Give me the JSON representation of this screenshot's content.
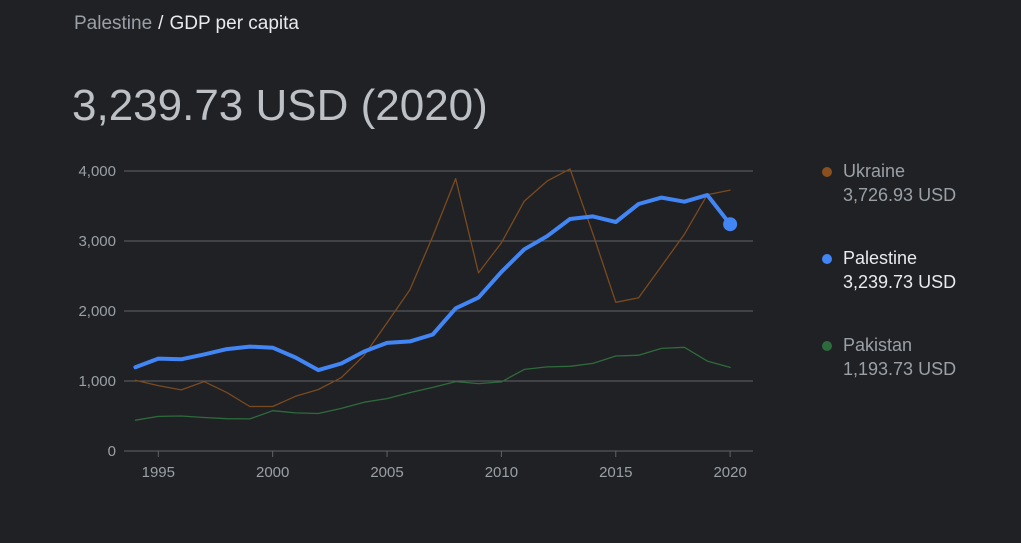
{
  "breadcrumb": {
    "parent": "Palestine",
    "separator": "/",
    "current": "GDP per capita"
  },
  "headline": "3,239.73 USD (2020)",
  "colors": {
    "background": "#202124",
    "grid": "#5f6368",
    "ukraine": "#7a4a20",
    "palestine": "#4285f4",
    "pakistan": "#2e6b3c"
  },
  "legend": [
    {
      "name": "Ukraine",
      "value": "3,726.93 USD",
      "color": "#8a4f1f",
      "highlighted": false
    },
    {
      "name": "Palestine",
      "value": "3,239.73 USD",
      "color": "#4285f4",
      "highlighted": true
    },
    {
      "name": "Pakistan",
      "value": "1,193.73 USD",
      "color": "#2e6b3c",
      "highlighted": false
    }
  ],
  "chart_data": {
    "type": "line",
    "title": "",
    "xlabel": "",
    "ylabel": "",
    "xlim": [
      1994,
      2020
    ],
    "ylim": [
      0,
      4000
    ],
    "yticks": [
      0,
      1000,
      2000,
      3000,
      4000
    ],
    "ytick_labels": [
      "0",
      "1,000",
      "2,000",
      "3,000",
      "4,000"
    ],
    "xticks": [
      1995,
      2000,
      2005,
      2010,
      2015,
      2020
    ],
    "xtick_labels": [
      "1995",
      "2000",
      "2005",
      "2010",
      "2015",
      "2020"
    ],
    "grid": true,
    "legend_position": "right",
    "x": [
      1994,
      1995,
      1996,
      1997,
      1998,
      1999,
      2000,
      2001,
      2002,
      2003,
      2004,
      2005,
      2006,
      2007,
      2008,
      2009,
      2010,
      2011,
      2012,
      2013,
      2014,
      2015,
      2016,
      2017,
      2018,
      2019,
      2020
    ],
    "series": [
      {
        "name": "Ukraine",
        "color": "#7a4a20",
        "emphasis": false,
        "values": [
          1010,
          935,
          873,
          991,
          835,
          636,
          636,
          781,
          879,
          1049,
          1367,
          1830,
          2303,
          3069,
          3891,
          2545,
          2974,
          3570,
          3856,
          4030,
          3104,
          2125,
          2188,
          2641,
          3097,
          3662,
          3727
        ]
      },
      {
        "name": "Palestine",
        "color": "#4285f4",
        "emphasis": true,
        "values": [
          1196,
          1320,
          1310,
          1380,
          1456,
          1492,
          1476,
          1336,
          1156,
          1250,
          1422,
          1544,
          1566,
          1664,
          2038,
          2192,
          2558,
          2882,
          3068,
          3314,
          3352,
          3272,
          3528,
          3620,
          3562,
          3657,
          3240
        ]
      },
      {
        "name": "Pakistan",
        "color": "#2e6b3c",
        "emphasis": false,
        "values": [
          440,
          494,
          500,
          478,
          462,
          458,
          576,
          544,
          536,
          609,
          697,
          748,
          835,
          908,
          991,
          963,
          987,
          1165,
          1201,
          1210,
          1251,
          1357,
          1368,
          1465,
          1482,
          1285,
          1194
        ]
      }
    ]
  }
}
